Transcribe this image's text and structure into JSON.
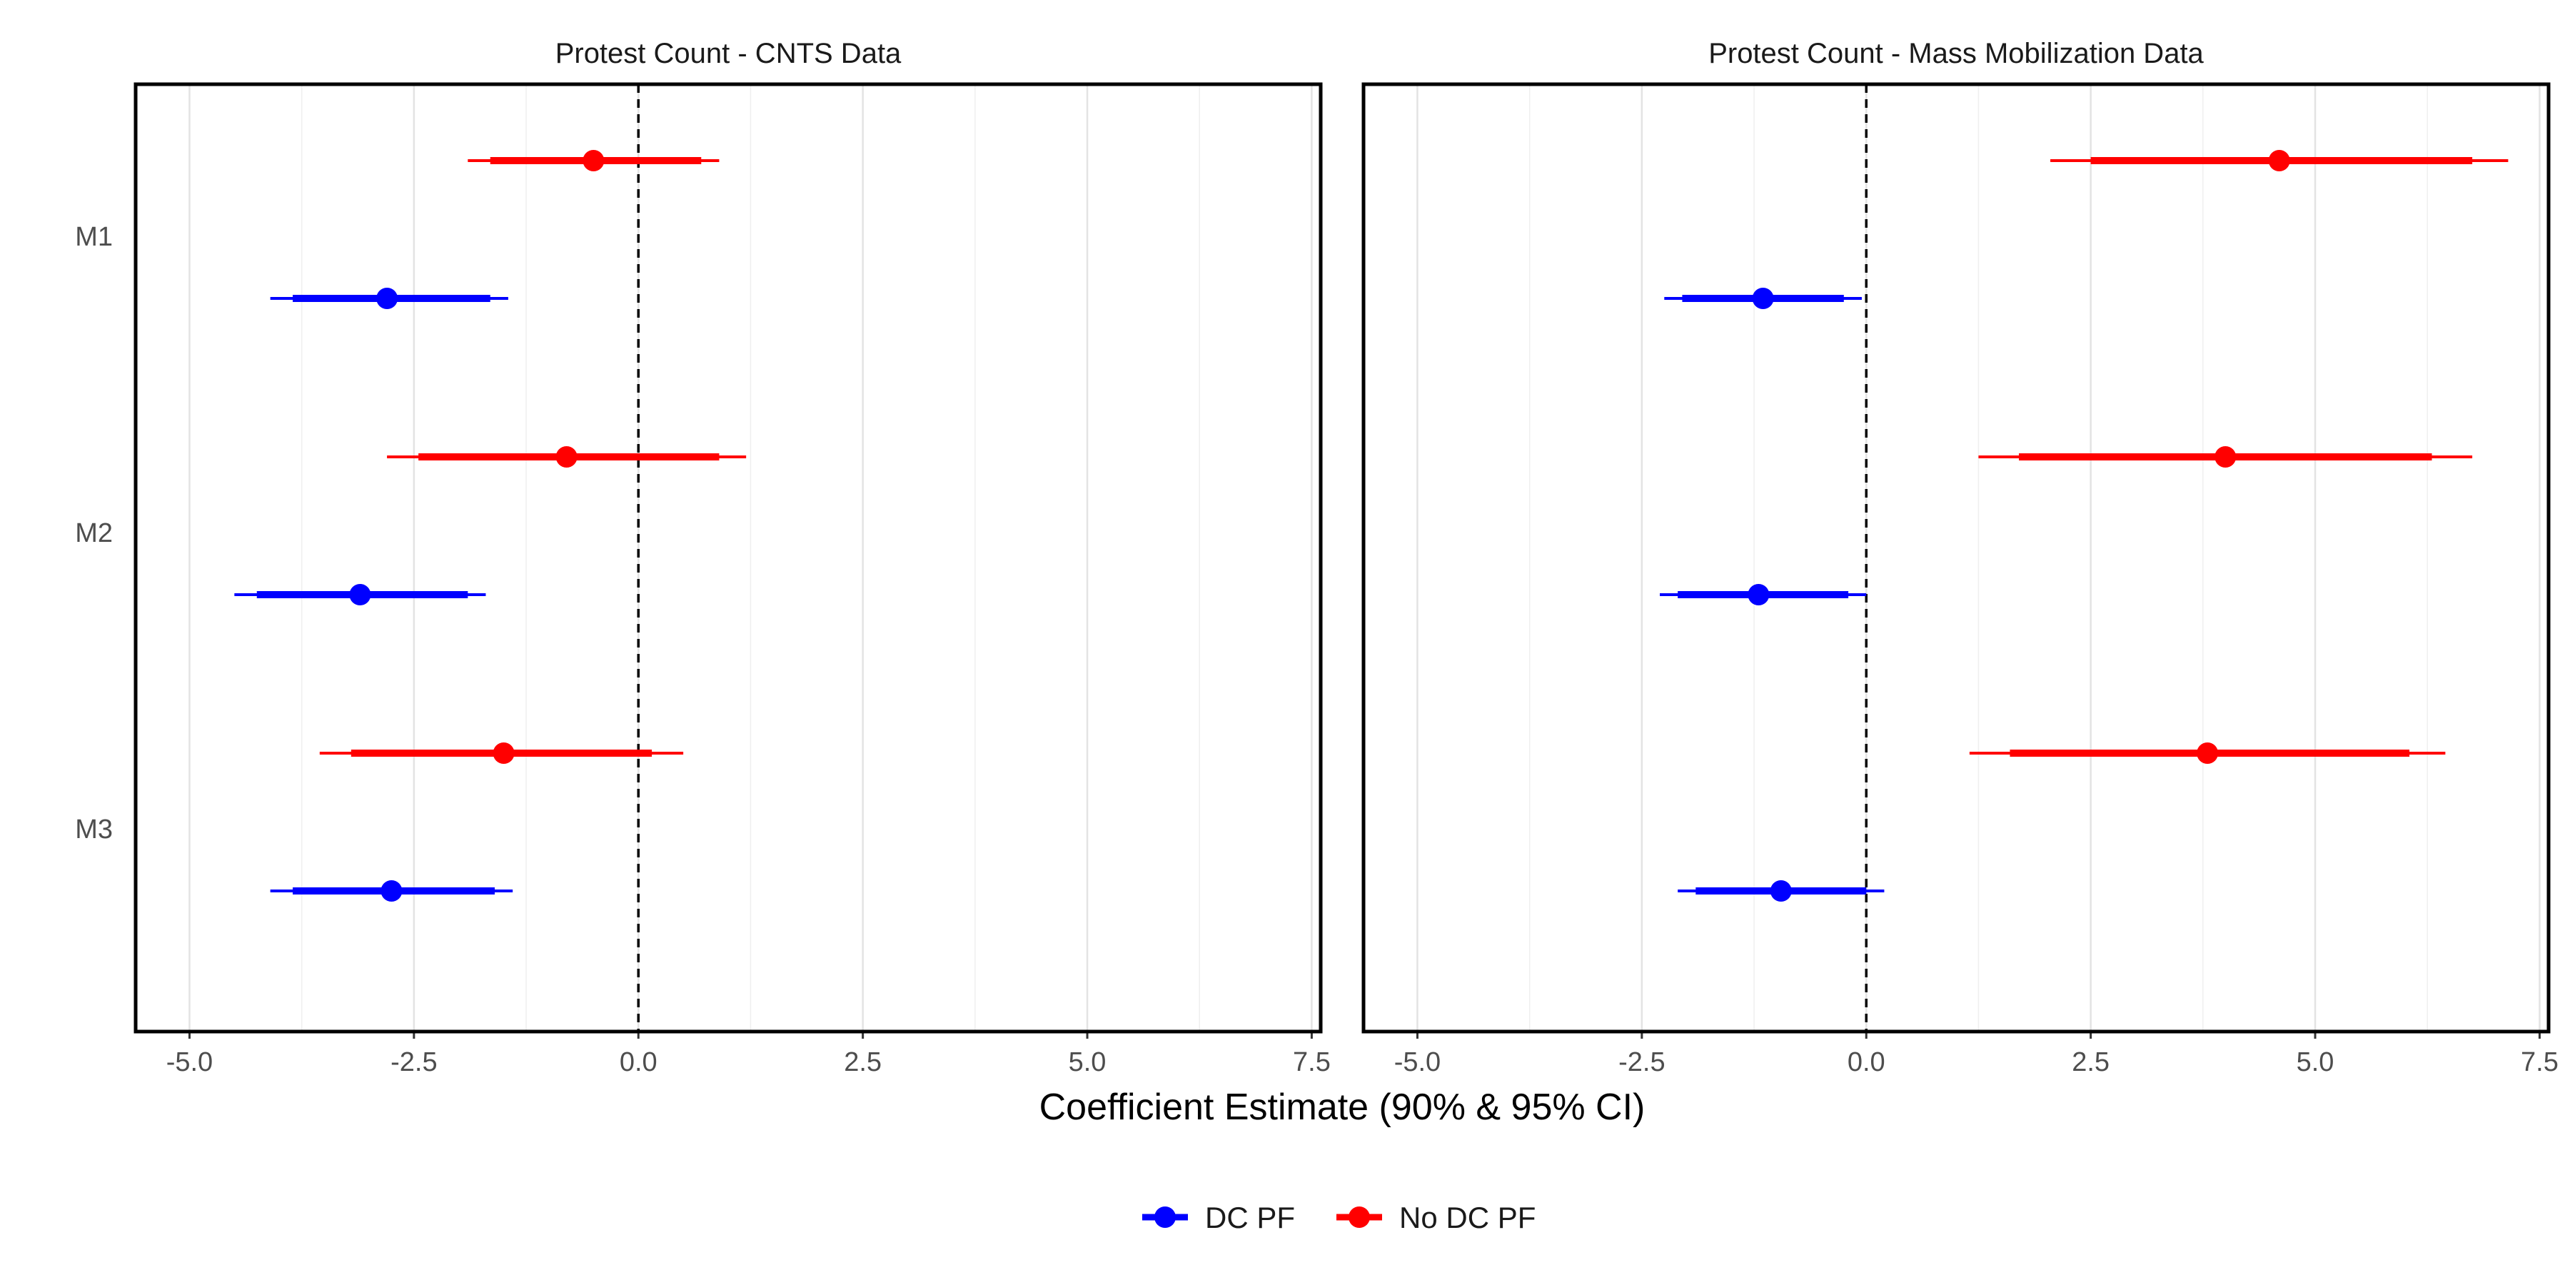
{
  "chart_data": {
    "type": "scatter",
    "subtype": "coefficient-plot",
    "xlabel": "Coefficient Estimate (90% & 95% CI)",
    "xlim": [
      -5.6,
      7.6
    ],
    "x_ticks": [
      -5.0,
      -2.5,
      0.0,
      2.5,
      5.0,
      7.5
    ],
    "x_tick_labels": [
      "-5.0",
      "-2.5",
      "0.0",
      "2.5",
      "5.0",
      "7.5"
    ],
    "reference_line": 0,
    "models": [
      "M1",
      "M2",
      "M3"
    ],
    "legend": {
      "position": "bottom",
      "entries": [
        {
          "name": "DC PF",
          "color": "#0000ff"
        },
        {
          "name": "No DC PF",
          "color": "#ff0000"
        }
      ]
    },
    "panels": [
      {
        "title": "Protest Count - CNTS Data",
        "series": [
          {
            "name": "DC PF",
            "color": "#0000ff",
            "points": [
              {
                "model": "M1",
                "estimate": -2.8,
                "ci90": [
                  -3.85,
                  -1.65
                ],
                "ci95": [
                  -4.1,
                  -1.45
                ]
              },
              {
                "model": "M2",
                "estimate": -3.1,
                "ci90": [
                  -4.25,
                  -1.9
                ],
                "ci95": [
                  -4.5,
                  -1.7
                ]
              },
              {
                "model": "M3",
                "estimate": -2.75,
                "ci90": [
                  -3.85,
                  -1.6
                ],
                "ci95": [
                  -4.1,
                  -1.4
                ]
              }
            ]
          },
          {
            "name": "No DC PF",
            "color": "#ff0000",
            "points": [
              {
                "model": "M1",
                "estimate": -0.5,
                "ci90": [
                  -1.65,
                  0.7
                ],
                "ci95": [
                  -1.9,
                  0.9
                ]
              },
              {
                "model": "M2",
                "estimate": -0.8,
                "ci90": [
                  -2.45,
                  0.9
                ],
                "ci95": [
                  -2.8,
                  1.2
                ]
              },
              {
                "model": "M3",
                "estimate": -1.5,
                "ci90": [
                  -3.2,
                  0.15
                ],
                "ci95": [
                  -3.55,
                  0.5
                ]
              }
            ]
          }
        ]
      },
      {
        "title": "Protest Count - Mass Mobilization Data",
        "series": [
          {
            "name": "DC PF",
            "color": "#0000ff",
            "points": [
              {
                "model": "M1",
                "estimate": -1.15,
                "ci90": [
                  -2.05,
                  -0.25
                ],
                "ci95": [
                  -2.25,
                  -0.05
                ]
              },
              {
                "model": "M2",
                "estimate": -1.2,
                "ci90": [
                  -2.1,
                  -0.2
                ],
                "ci95": [
                  -2.3,
                  0.0
                ]
              },
              {
                "model": "M3",
                "estimate": -0.95,
                "ci90": [
                  -1.9,
                  0.0
                ],
                "ci95": [
                  -2.1,
                  0.2
                ]
              }
            ]
          },
          {
            "name": "No DC PF",
            "color": "#ff0000",
            "points": [
              {
                "model": "M1",
                "estimate": 4.6,
                "ci90": [
                  2.5,
                  6.75
                ],
                "ci95": [
                  2.05,
                  7.15
                ]
              },
              {
                "model": "M2",
                "estimate": 4.0,
                "ci90": [
                  1.7,
                  6.3
                ],
                "ci95": [
                  1.25,
                  6.75
                ]
              },
              {
                "model": "M3",
                "estimate": 3.8,
                "ci90": [
                  1.6,
                  6.05
                ],
                "ci95": [
                  1.15,
                  6.45
                ]
              }
            ]
          }
        ]
      }
    ]
  }
}
